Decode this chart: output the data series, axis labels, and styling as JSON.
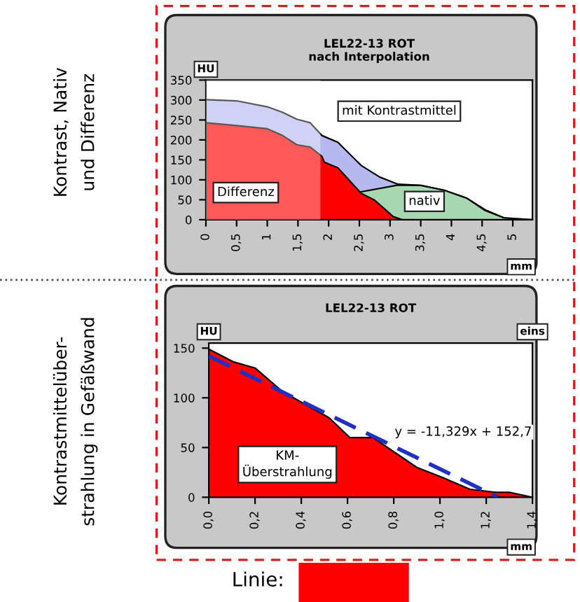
{
  "chart_data": [
    {
      "type": "area",
      "title": "LEL22-13 ROT\nnach Interpolation",
      "xlabel": "mm",
      "ylabel": "HU",
      "xlim": [
        0,
        5.32
      ],
      "xticks": [
        0,
        {
          "value": 0.5,
          "label": "0,5"
        },
        1,
        {
          "value": 1.5,
          "label": "1,5"
        },
        2,
        {
          "value": 2.5,
          "label": "2,5"
        },
        3,
        {
          "value": 3.5,
          "label": "3,5"
        },
        4,
        {
          "value": 4.5,
          "label": "4,5"
        },
        5
      ],
      "ylim": [
        0,
        350
      ],
      "yticks": [
        0,
        50,
        100,
        150,
        200,
        250,
        300,
        350
      ],
      "bands": [
        {
          "axis": "x",
          "from": 0,
          "to": 1.85,
          "color": "#ffffff"
        }
      ],
      "annotations": [
        "Kontrast, Nativ\nund Differenz"
      ],
      "series": [
        {
          "name": "mit Kontrastmittel",
          "color": "#b8b8f0",
          "x": [
            0,
            0.5,
            1,
            1.25,
            1.48,
            1.7,
            1.89,
            2.15,
            2.53,
            2.83,
            3.13,
            3.5,
            3.88,
            4.25,
            4.55,
            4.85,
            4.95
          ],
          "values": [
            301,
            298,
            283,
            269,
            252,
            243,
            211,
            194,
            136,
            107,
            89,
            86,
            74,
            54,
            25,
            5,
            0
          ]
        },
        {
          "name": "nativ",
          "color": "#a8d8b0",
          "x": [
            2.53,
            3.13,
            3.5,
            3.88,
            4.25,
            4.55,
            4.85,
            5.3
          ],
          "values": [
            70,
            87,
            86,
            74,
            54,
            23,
            5,
            0
          ]
        },
        {
          "name": "Differenz",
          "color": "#ff0000",
          "x": [
            0,
            0.5,
            1,
            1.25,
            1.48,
            1.7,
            1.89,
            1.93,
            2.15,
            2.53,
            2.75,
            3.05,
            3.2
          ],
          "values": [
            243,
            236,
            228,
            211,
            188,
            182,
            159,
            144,
            130,
            66,
            49,
            8,
            0
          ]
        }
      ]
    },
    {
      "type": "area",
      "title": "LEL22-13 ROT",
      "xlabel": "mm",
      "ylabel": "HU",
      "xlim": [
        0,
        1.4
      ],
      "xticks": [
        {
          "value": 0,
          "label": "0,0"
        },
        {
          "value": 0.2,
          "label": "0,2"
        },
        {
          "value": 0.4,
          "label": "0,4"
        },
        {
          "value": 0.6,
          "label": "0,6"
        },
        {
          "value": 0.8,
          "label": "0,8"
        },
        {
          "value": 1.0,
          "label": "1,0"
        },
        {
          "value": 1.2,
          "label": "1,2"
        },
        {
          "value": 1.4,
          "label": "1,4"
        }
      ],
      "ylim": [
        0,
        155
      ],
      "yticks": [
        0,
        50,
        100,
        150
      ],
      "annotations": [
        "Kontrastmittelüber-\nstrahlung in Gefäßwand",
        {
          "text": "y = -11,329x + 152,7",
          "x": 1.0,
          "y": 28
        },
        "eins",
        "Linie:"
      ],
      "series": [
        {
          "name": "KM-\nÜberstrahlung",
          "color": "#ff0000",
          "x": [
            0,
            0.108,
            0.2,
            0.32,
            0.52,
            0.61,
            0.71,
            0.9,
            1.01,
            1.13,
            1.24,
            1.3,
            1.4
          ],
          "values": [
            149,
            136,
            130,
            106,
            80,
            60,
            60,
            30,
            20,
            8,
            5,
            5,
            0
          ]
        },
        {
          "type": "line",
          "color": "#2030c0",
          "line_style": "dashed",
          "x": [
            0,
            1.25
          ],
          "values": [
            142,
            0
          ]
        }
      ]
    }
  ]
}
